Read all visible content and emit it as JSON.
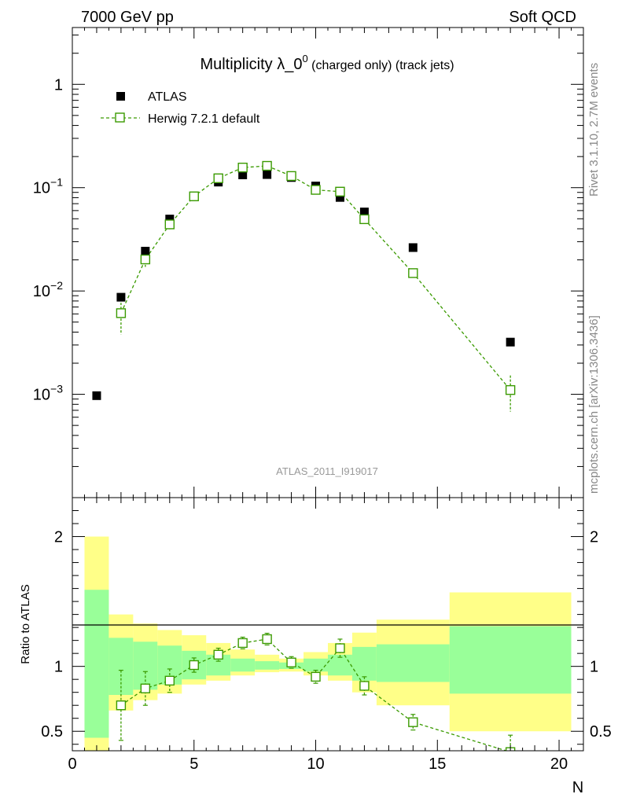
{
  "header": {
    "left": "7000 GeV pp",
    "right": "Soft QCD"
  },
  "side_labels": {
    "rivet": "Rivet 3.1.10,  2.7M events",
    "mcplots": "mcplots.cern.ch [arXiv:1306.3436]"
  },
  "watermark": "ATLAS_2011_I919017",
  "colors": {
    "data": "#000000",
    "mc": "#3a9a00",
    "band_inner": "#99ff99",
    "band_outer": "#ffff88"
  },
  "chart_data": [
    {
      "type": "scatter",
      "title_main": "Multiplicity λ_0",
      "title_sup": "0",
      "title_small": " (charged only) (track jets)",
      "ylog": true,
      "xlim": [
        0,
        21
      ],
      "ylim_exp": [
        -4,
        0.55
      ],
      "yticks": [
        {
          "value": 1,
          "label": "1",
          "sup": ""
        },
        {
          "value": 0.1,
          "label": "10",
          "sup": "−1"
        },
        {
          "value": 0.01,
          "label": "10",
          "sup": "−2"
        },
        {
          "value": 0.001,
          "label": "10",
          "sup": "−3"
        }
      ],
      "legend": [
        {
          "name": "ATLAS",
          "marker": "filled-square"
        },
        {
          "name": "Herwig 7.2.1 default",
          "marker": "open-square-dashed"
        }
      ],
      "series": [
        {
          "name": "ATLAS",
          "x": [
            1,
            2,
            3,
            4,
            5,
            6,
            7,
            8,
            9,
            10,
            11,
            12,
            14,
            18
          ],
          "y": [
            0.00097,
            0.0087,
            0.0243,
            0.0497,
            0.0824,
            0.1132,
            0.1329,
            0.1339,
            0.1254,
            0.1038,
            0.0804,
            0.0582,
            0.0263,
            0.0032
          ]
        },
        {
          "name": "Herwig 7.2.1 default",
          "x": [
            2,
            3,
            4,
            5,
            6,
            7,
            8,
            9,
            10,
            11,
            12,
            14,
            18
          ],
          "y": [
            0.0061,
            0.0202,
            0.0441,
            0.0824,
            0.1232,
            0.1565,
            0.1625,
            0.1297,
            0.0952,
            0.0915,
            0.0495,
            0.0149,
            0.0011
          ],
          "err_lo": [
            0.0023,
            0.0031,
            0.0045,
            0.0045,
            0.0055,
            0.006,
            0.0062,
            0.0055,
            0.005,
            0.006,
            0.004,
            0.0015,
            0.00042
          ],
          "err_hi": [
            0.0023,
            0.0031,
            0.0045,
            0.0045,
            0.0055,
            0.006,
            0.0062,
            0.0055,
            0.005,
            0.006,
            0.004,
            0.0015,
            0.00042
          ]
        }
      ]
    },
    {
      "type": "scatter",
      "ylabel": "Ratio to ATLAS",
      "xlabel": "N",
      "xlim": [
        0,
        21
      ],
      "ylim": [
        0.35,
        2.3
      ],
      "xticks": [
        0,
        5,
        10,
        15,
        20
      ],
      "yticks": [
        {
          "value": 0.5,
          "label": "0.5"
        },
        {
          "value": 1,
          "label": "1"
        },
        {
          "value": 2,
          "label": "2"
        }
      ],
      "bands": {
        "edges": [
          0.5,
          1.5,
          2.5,
          3.5,
          4.5,
          5.5,
          6.5,
          7.5,
          8.5,
          9.5,
          10.5,
          11.5,
          12.5,
          15.5,
          20.5
        ],
        "outer_lo": [
          0,
          0.66,
          0.74,
          0.79,
          0.86,
          0.89,
          0.93,
          0.955,
          0.96,
          0.93,
          0.89,
          0.8,
          0.7,
          0.5
        ],
        "outer_hi": [
          2,
          1.4,
          1.33,
          1.28,
          1.24,
          1.18,
          1.13,
          1.09,
          1.06,
          1.11,
          1.18,
          1.26,
          1.36,
          1.57
        ],
        "inner_lo": [
          0.45,
          0.78,
          0.82,
          0.86,
          0.9,
          0.93,
          0.96,
          0.975,
          0.98,
          0.96,
          0.93,
          0.89,
          0.88,
          0.79
        ],
        "inner_hi": [
          1.59,
          1.22,
          1.19,
          1.16,
          1.12,
          1.09,
          1.06,
          1.04,
          1.03,
          1.06,
          1.09,
          1.15,
          1.17,
          1.31
        ]
      },
      "series": [
        {
          "name": "Herwig 7.2.1 default / ATLAS",
          "x": [
            2,
            3,
            4,
            5,
            6,
            7,
            8,
            9,
            10,
            11,
            12,
            14,
            18
          ],
          "y": [
            0.7,
            0.83,
            0.89,
            1.01,
            1.09,
            1.18,
            1.21,
            1.03,
            0.92,
            1.14,
            0.85,
            0.57,
            0.34
          ],
          "err_lo": [
            0.27,
            0.13,
            0.09,
            0.055,
            0.05,
            0.045,
            0.045,
            0.045,
            0.05,
            0.07,
            0.07,
            0.06,
            0.13
          ],
          "err_hi": [
            0.27,
            0.13,
            0.09,
            0.055,
            0.05,
            0.045,
            0.045,
            0.045,
            0.05,
            0.07,
            0.07,
            0.06,
            0.13
          ]
        }
      ]
    }
  ]
}
